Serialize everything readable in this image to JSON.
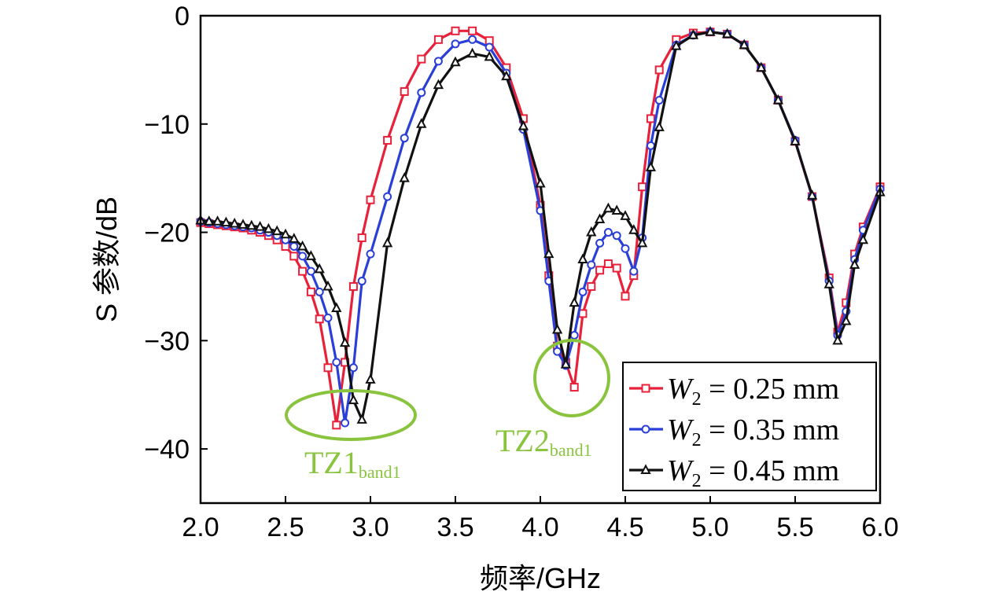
{
  "chart_data": {
    "type": "line",
    "xlabel": "频率/GHz",
    "ylabel": "S 参数/dB",
    "xlim": [
      2.0,
      6.0
    ],
    "ylim": [
      -45,
      0
    ],
    "xticks": [
      2.0,
      2.5,
      3.0,
      3.5,
      4.0,
      4.5,
      5.0,
      5.5,
      6.0
    ],
    "xtick_labels": [
      "2.0",
      "2.5",
      "3.0",
      "3.5",
      "4.0",
      "4.5",
      "5.0",
      "5.5",
      "6.0"
    ],
    "yticks": [
      0,
      -10,
      -20,
      -30,
      -40
    ],
    "ytick_labels": [
      "0",
      "−10",
      "−20",
      "−30",
      "−40"
    ],
    "grid": false,
    "legend": "bottom-right",
    "series": [
      {
        "name": "W2 = 0.25 mm",
        "label_var": "W",
        "label_sub": "2",
        "label_rest": " = 0.25 mm",
        "color": "#e8203a",
        "marker": "square",
        "x": [
          2.0,
          2.05,
          2.1,
          2.15,
          2.2,
          2.25,
          2.3,
          2.35,
          2.4,
          2.45,
          2.5,
          2.55,
          2.6,
          2.65,
          2.7,
          2.75,
          2.8,
          2.85,
          2.9,
          2.95,
          3.0,
          3.1,
          3.2,
          3.3,
          3.4,
          3.5,
          3.6,
          3.7,
          3.8,
          3.9,
          4.0,
          4.05,
          4.1,
          4.15,
          4.2,
          4.25,
          4.3,
          4.35,
          4.4,
          4.45,
          4.5,
          4.55,
          4.6,
          4.65,
          4.7,
          4.8,
          4.9,
          5.0,
          5.1,
          5.2,
          5.3,
          5.4,
          5.5,
          5.6,
          5.7,
          5.75,
          5.8,
          5.85,
          5.9,
          6.0
        ],
        "y": [
          -19.1,
          -19.2,
          -19.3,
          -19.4,
          -19.5,
          -19.6,
          -19.8,
          -20.0,
          -20.3,
          -20.7,
          -21.3,
          -22.2,
          -23.6,
          -25.5,
          -28.0,
          -32.5,
          -37.8,
          -32.0,
          -25.0,
          -20.5,
          -17.0,
          -11.5,
          -7.0,
          -4.0,
          -2.2,
          -1.4,
          -1.4,
          -2.3,
          -4.8,
          -9.5,
          -17.5,
          -24.0,
          -30.5,
          -32.0,
          -34.3,
          -27.5,
          -25.0,
          -23.5,
          -22.9,
          -23.3,
          -25.9,
          -24.0,
          -15.8,
          -9.5,
          -5.0,
          -2.2,
          -1.6,
          -1.5,
          -1.7,
          -2.7,
          -4.8,
          -7.8,
          -11.6,
          -16.7,
          -24.2,
          -29.2,
          -26.5,
          -22.0,
          -19.5,
          -15.8
        ]
      },
      {
        "name": "W2 = 0.35 mm",
        "label_var": "W",
        "label_sub": "2",
        "label_rest": " = 0.35 mm",
        "color": "#2a3fd8",
        "marker": "circle",
        "x": [
          2.0,
          2.05,
          2.1,
          2.15,
          2.2,
          2.25,
          2.3,
          2.35,
          2.4,
          2.45,
          2.5,
          2.55,
          2.6,
          2.65,
          2.7,
          2.75,
          2.8,
          2.85,
          2.9,
          2.95,
          3.0,
          3.1,
          3.2,
          3.3,
          3.4,
          3.5,
          3.6,
          3.7,
          3.8,
          3.9,
          4.0,
          4.05,
          4.1,
          4.15,
          4.2,
          4.25,
          4.3,
          4.35,
          4.4,
          4.45,
          4.5,
          4.55,
          4.6,
          4.65,
          4.7,
          4.8,
          4.9,
          5.0,
          5.1,
          5.2,
          5.3,
          5.4,
          5.5,
          5.6,
          5.7,
          5.75,
          5.8,
          5.85,
          5.9,
          6.0
        ],
        "y": [
          -19.0,
          -19.1,
          -19.2,
          -19.3,
          -19.4,
          -19.5,
          -19.6,
          -19.8,
          -20.0,
          -20.3,
          -20.7,
          -21.3,
          -22.2,
          -23.6,
          -25.5,
          -27.9,
          -32.0,
          -37.6,
          -32.5,
          -24.5,
          -22.0,
          -16.7,
          -11.3,
          -7.1,
          -4.2,
          -2.6,
          -2.2,
          -2.9,
          -5.3,
          -10.5,
          -18.0,
          -24.5,
          -31.0,
          -32.3,
          -29.5,
          -25.5,
          -23.0,
          -21.0,
          -20.0,
          -20.3,
          -21.5,
          -23.6,
          -20.5,
          -12.0,
          -7.8,
          -2.7,
          -1.8,
          -1.5,
          -1.7,
          -2.7,
          -4.8,
          -7.8,
          -11.5,
          -16.7,
          -24.5,
          -29.5,
          -27.3,
          -22.5,
          -19.8,
          -16.0
        ]
      },
      {
        "name": "W2 = 0.45 mm",
        "label_var": "W",
        "label_sub": "2",
        "label_rest": " = 0.45 mm",
        "color": "#111111",
        "marker": "triangle",
        "x": [
          2.0,
          2.05,
          2.1,
          2.15,
          2.2,
          2.25,
          2.3,
          2.35,
          2.4,
          2.45,
          2.5,
          2.55,
          2.6,
          2.65,
          2.7,
          2.75,
          2.8,
          2.85,
          2.9,
          2.95,
          3.0,
          3.1,
          3.2,
          3.3,
          3.4,
          3.5,
          3.6,
          3.7,
          3.8,
          3.9,
          4.0,
          4.05,
          4.1,
          4.15,
          4.2,
          4.25,
          4.3,
          4.35,
          4.4,
          4.45,
          4.5,
          4.55,
          4.6,
          4.65,
          4.7,
          4.8,
          4.9,
          5.0,
          5.1,
          5.2,
          5.3,
          5.4,
          5.5,
          5.6,
          5.7,
          5.75,
          5.8,
          5.85,
          5.9,
          6.0
        ],
        "y": [
          -18.9,
          -19.0,
          -19.0,
          -19.1,
          -19.2,
          -19.3,
          -19.4,
          -19.5,
          -19.7,
          -19.9,
          -20.2,
          -20.6,
          -21.3,
          -22.2,
          -23.4,
          -25.0,
          -27.0,
          -30.2,
          -35.5,
          -37.3,
          -33.6,
          -21.0,
          -15.0,
          -10.0,
          -6.4,
          -4.3,
          -3.5,
          -3.8,
          -5.6,
          -10.2,
          -15.5,
          -22.0,
          -29.0,
          -32.2,
          -26.5,
          -22.5,
          -20.0,
          -18.8,
          -17.8,
          -18.0,
          -18.5,
          -19.8,
          -21.0,
          -14.0,
          -10.3,
          -2.8,
          -1.8,
          -1.5,
          -1.7,
          -2.7,
          -4.8,
          -7.8,
          -11.6,
          -16.6,
          -24.8,
          -30.0,
          -28.2,
          -23.0,
          -20.7,
          -16.3
        ]
      }
    ],
    "annotations": [
      {
        "main": "TZ1",
        "sub": "band1",
        "color": "#8ac43f"
      },
      {
        "main": "TZ2",
        "sub": "band1",
        "color": "#8ac43f"
      }
    ]
  }
}
